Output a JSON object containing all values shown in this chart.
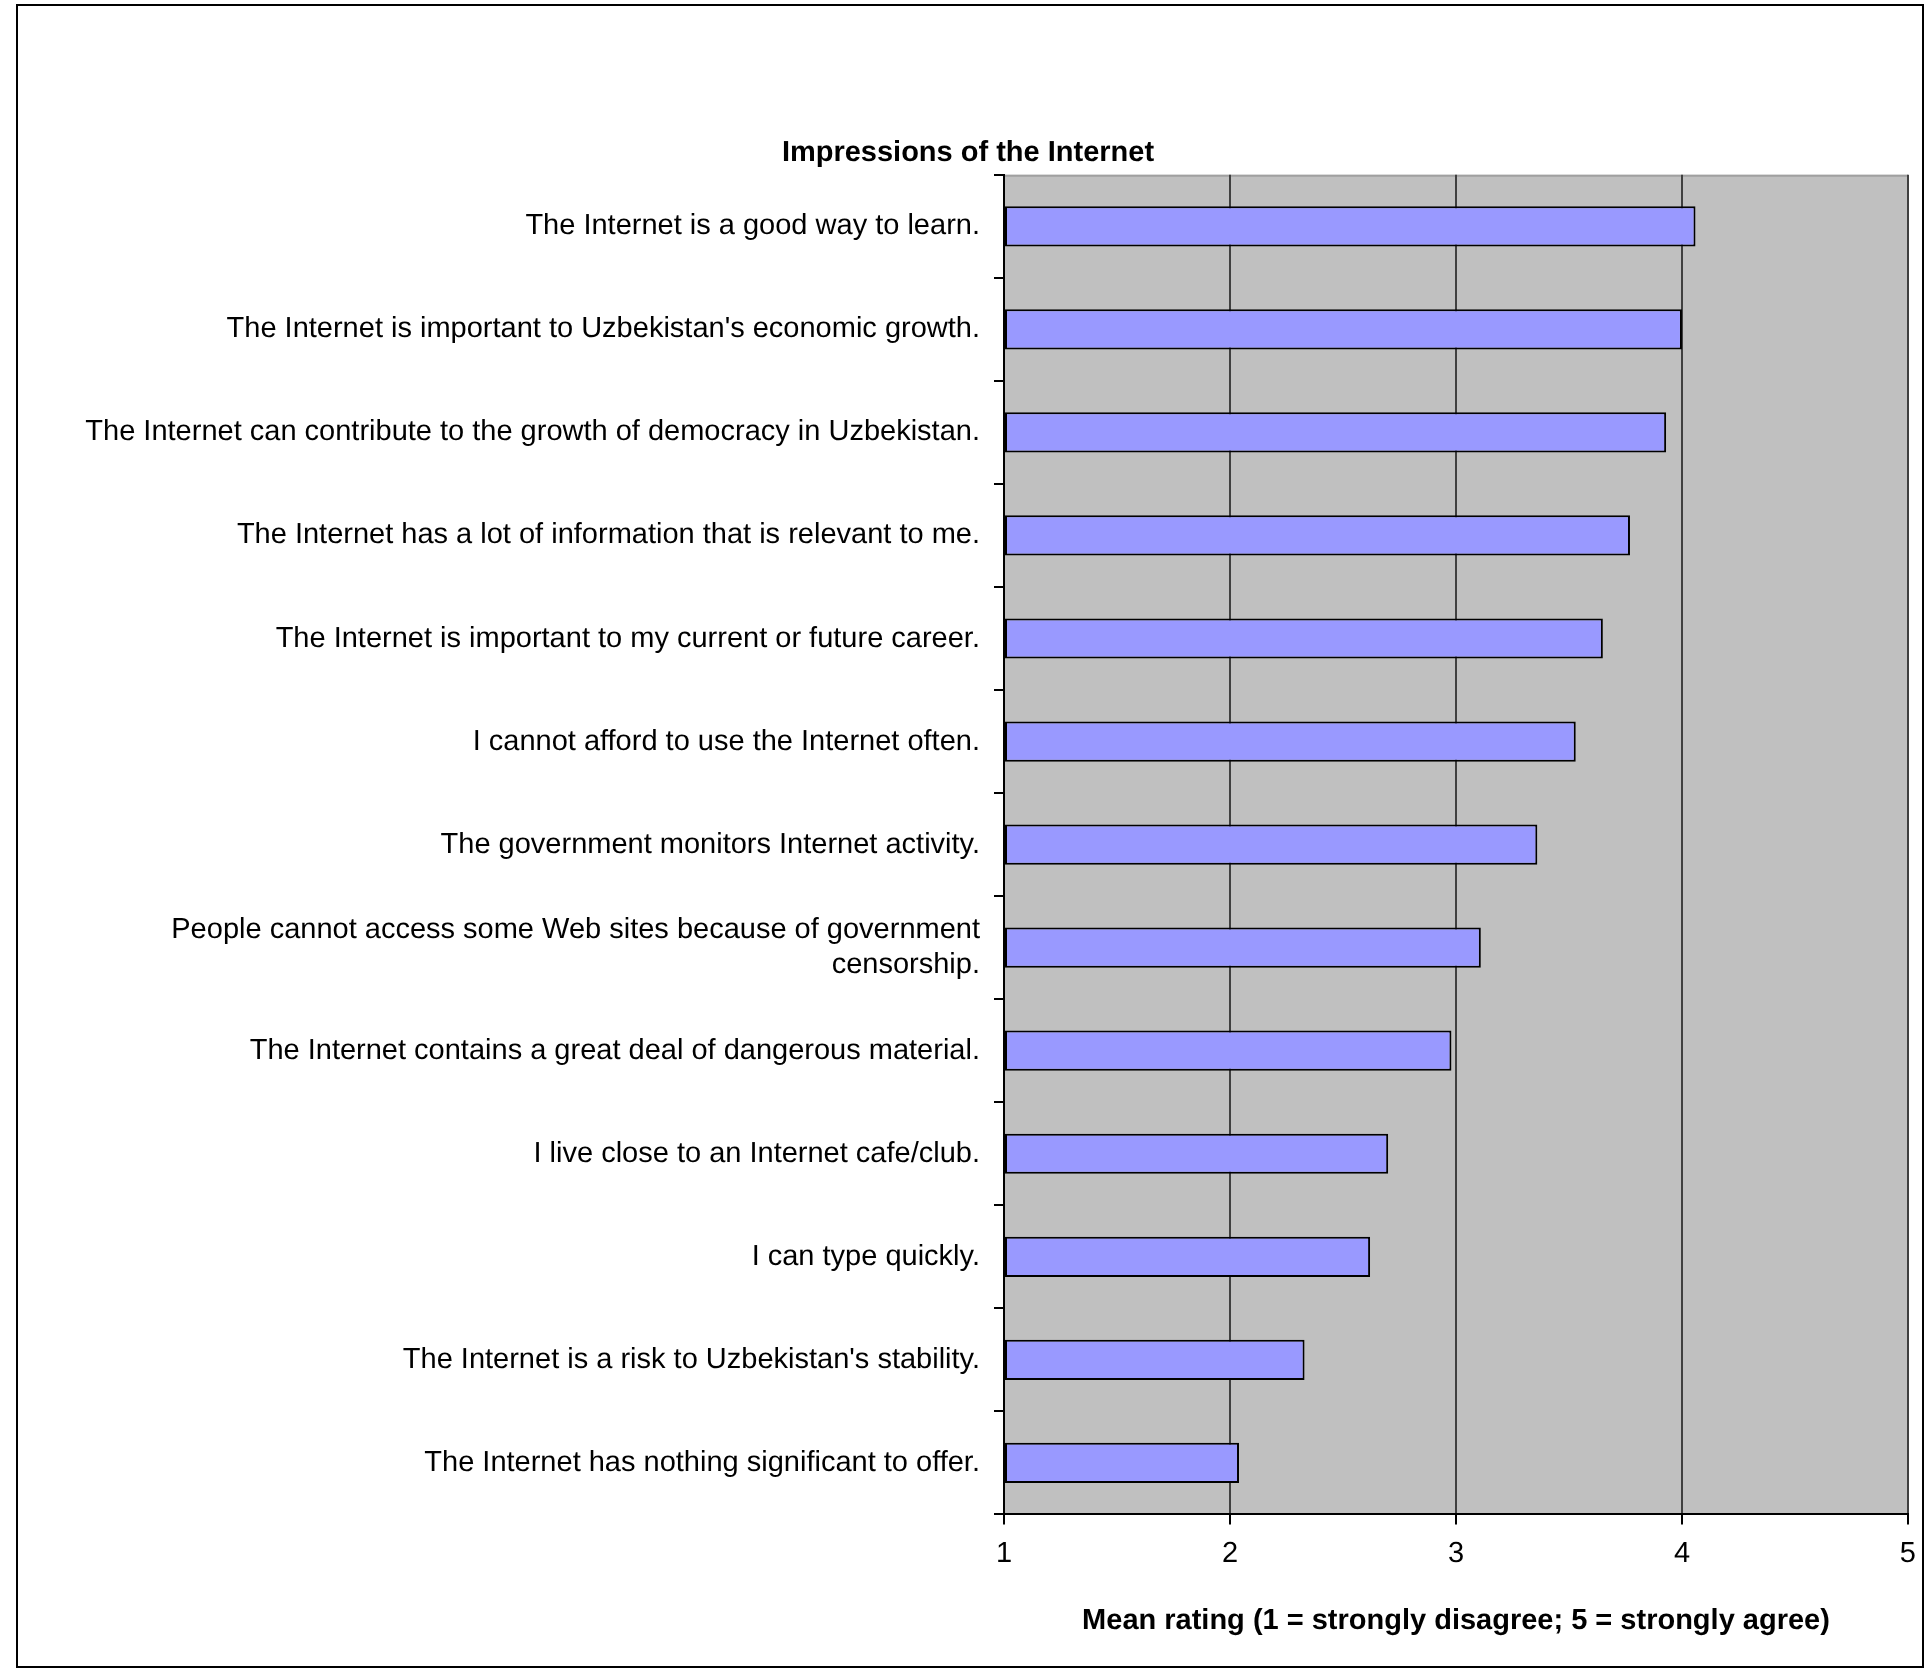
{
  "chart_data": {
    "type": "bar",
    "orientation": "horizontal",
    "title": "Impressions of the Internet",
    "xlabel": "Mean rating (1 = strongly disagree; 5 = strongly agree)",
    "categories": [
      "The Internet is a good way to learn.",
      "The Internet is important to Uzbekistan's economic growth.",
      "The Internet can contribute to the growth of democracy in Uzbekistan.",
      "The Internet has a lot of information that is relevant to me.",
      "The Internet is important to my current or future career.",
      "I cannot afford to use the Internet often.",
      "The government monitors Internet activity.",
      "People cannot access some Web sites because of government censorship.",
      "The Internet contains a great deal of dangerous material.",
      "I live close to an Internet cafe/club.",
      "I can type quickly.",
      "The Internet is a risk to Uzbekistan's stability.",
      "The Internet has nothing significant to offer."
    ],
    "values": [
      4.06,
      4.0,
      3.93,
      3.77,
      3.65,
      3.53,
      3.36,
      3.11,
      2.98,
      2.7,
      2.62,
      2.33,
      2.04
    ],
    "color": "#9999ff",
    "xlim": [
      1,
      5
    ],
    "xticks": [
      1,
      2,
      3,
      4,
      5
    ],
    "grid": "x"
  }
}
